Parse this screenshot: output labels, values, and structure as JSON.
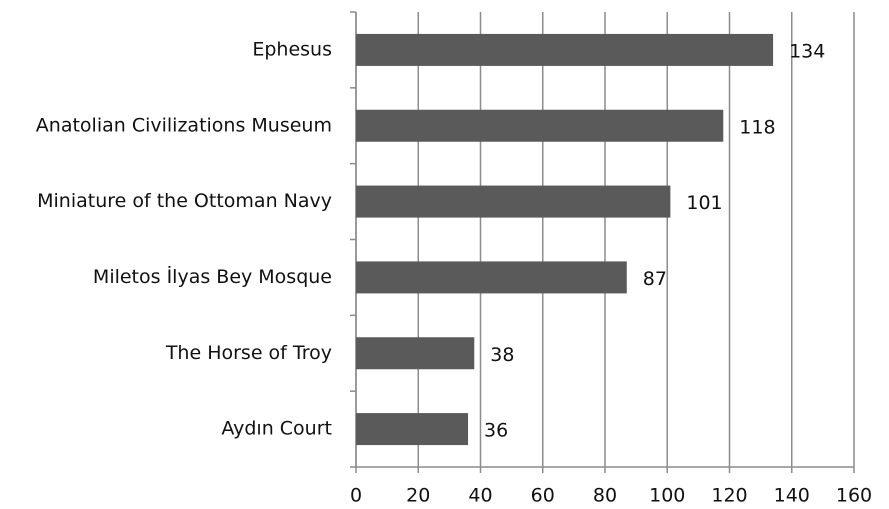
{
  "chart_data": {
    "type": "bar",
    "orientation": "horizontal",
    "categories": [
      "Ephesus",
      "Anatolian Civilizations Museum",
      "Miniature of the Ottoman Navy",
      "Miletos İlyas Bey Mosque",
      "The Horse of Troy",
      "Aydın Court"
    ],
    "values": [
      134,
      118,
      101,
      87,
      38,
      36
    ],
    "color": "#5a5a5a",
    "xlim": [
      0,
      160
    ],
    "xticks": [
      0,
      20,
      40,
      60,
      80,
      100,
      120,
      140,
      160
    ],
    "grid": true
  }
}
